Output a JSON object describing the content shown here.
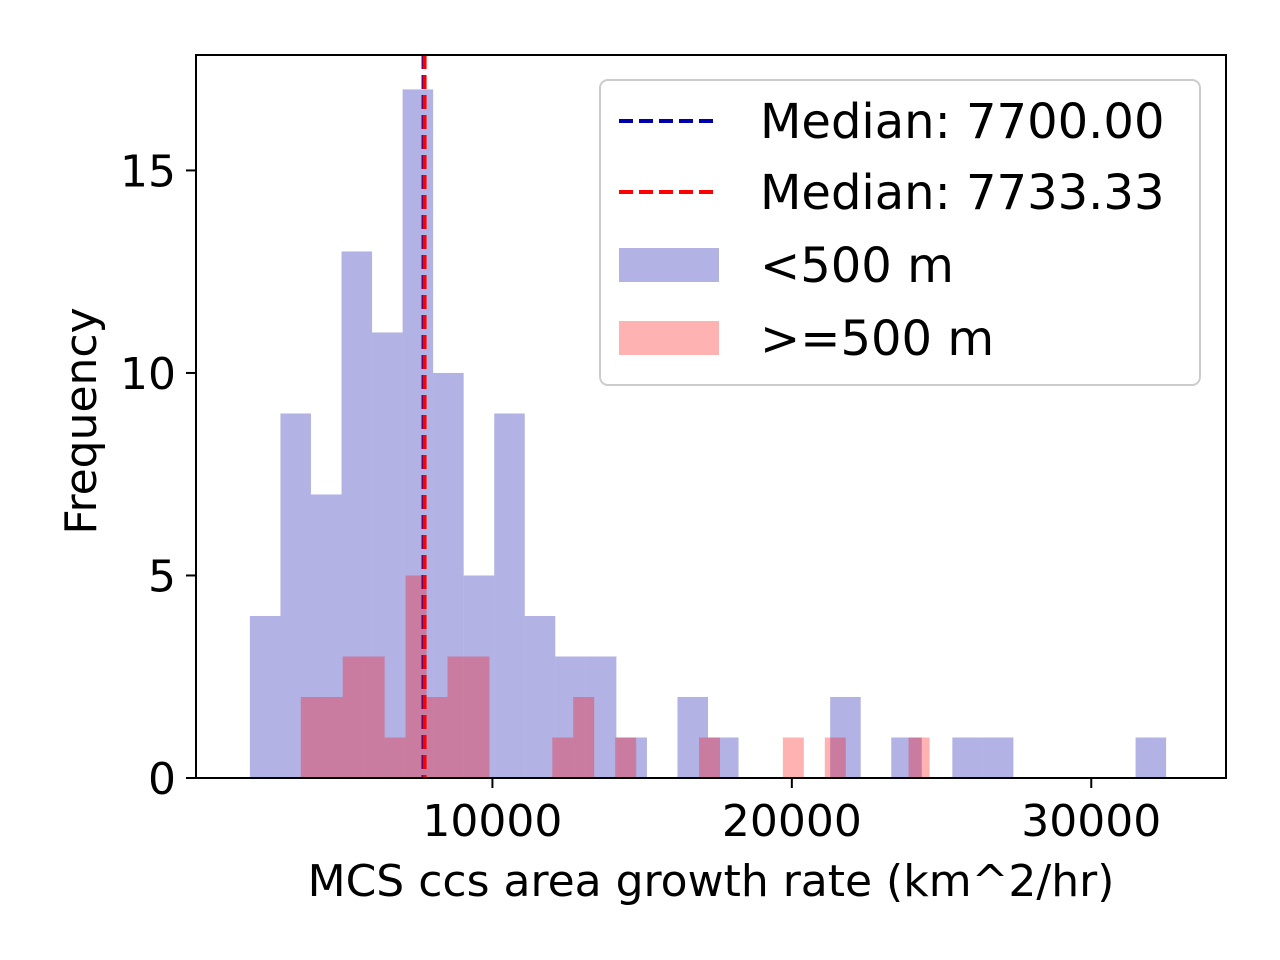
{
  "chart_data": {
    "type": "histogram",
    "xlabel": "MCS ccs area growth rate (km^2/hr)",
    "ylabel": "Frequency",
    "xlim": [
      100,
      34500
    ],
    "ylim": [
      0,
      17.85
    ],
    "xticks": [
      10000,
      20000,
      30000
    ],
    "xtick_labels": [
      "10000",
      "20000",
      "30000"
    ],
    "yticks": [
      0,
      5,
      10,
      15
    ],
    "ytick_labels": [
      "0",
      "5",
      "10",
      "15"
    ],
    "grid": false,
    "legend_position": "upper right",
    "series": [
      {
        "name": "<500 m",
        "color": "#0000aa",
        "alpha": 0.3,
        "bin_edges": [
          1900,
          2920,
          3940,
          4960,
          5980,
          7000,
          8020,
          9040,
          10060,
          11080,
          12100,
          13120,
          14140,
          15160,
          16180,
          17200,
          18220,
          19240,
          20260,
          21280,
          22300,
          23320,
          24340,
          25360,
          26380,
          27400,
          28420,
          29440,
          30460,
          31480,
          32500
        ],
        "counts": [
          4,
          9,
          7,
          13,
          11,
          17,
          10,
          5,
          9,
          4,
          3,
          3,
          1,
          0,
          2,
          1,
          0,
          0,
          0,
          2,
          0,
          1,
          0,
          1,
          1,
          0,
          0,
          0,
          0,
          1
        ]
      },
      {
        "name": ">=500 m",
        "color": "#ff0000",
        "alpha": 0.3,
        "bin_edges": [
          3600,
          4300,
          5000,
          5700,
          6400,
          7100,
          7800,
          8500,
          9200,
          9900,
          10600,
          11300,
          12000,
          12700,
          13400,
          14100,
          14800,
          15500,
          16200,
          16900,
          17600,
          18300,
          19000,
          19700,
          20400,
          21100,
          21800,
          22500,
          23200,
          23900,
          24600
        ],
        "counts": [
          2,
          2,
          3,
          3,
          1,
          5,
          2,
          3,
          3,
          0,
          0,
          0,
          1,
          2,
          0,
          1,
          0,
          0,
          0,
          1,
          0,
          0,
          0,
          1,
          0,
          1,
          0,
          0,
          0,
          1
        ]
      }
    ],
    "median_lines": [
      {
        "label": "Median: 7700.00",
        "x": 7700,
        "color": "#0000aa",
        "style": "dashed"
      },
      {
        "label": "Median: 7733.33",
        "x": 7733.33,
        "color": "#ff0000",
        "style": "dashed"
      }
    ]
  }
}
